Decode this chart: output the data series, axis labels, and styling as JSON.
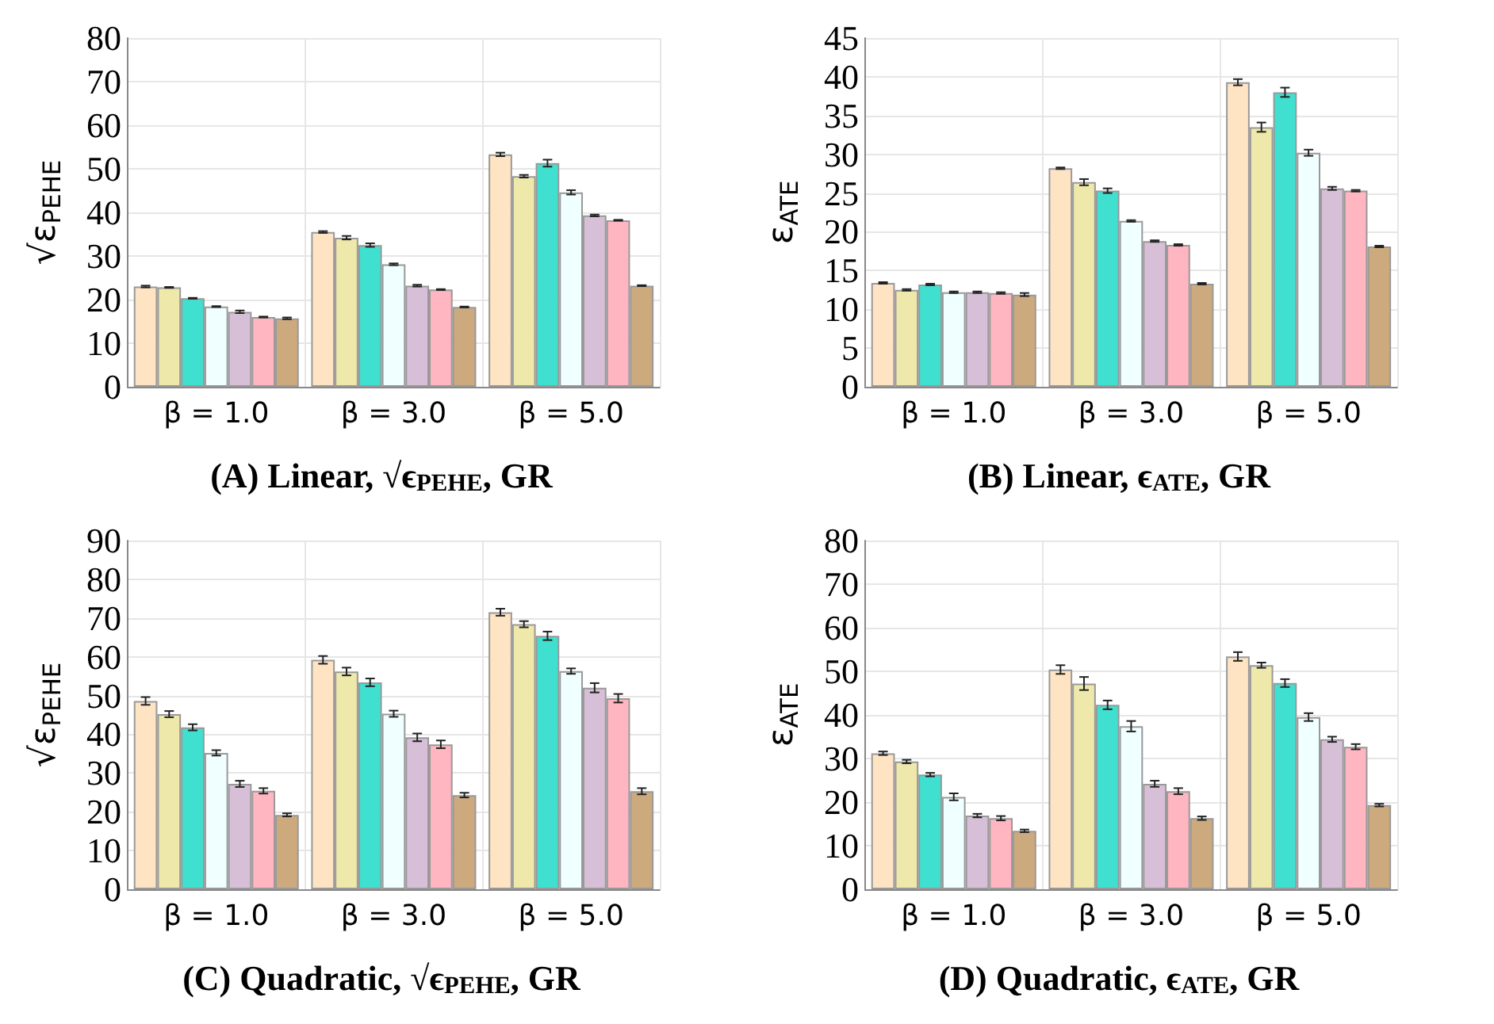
{
  "chart_data": [
    {
      "type": "bar",
      "title": "(A) Linear, √ϵ$_{PEHE}$, GR",
      "ylabel": "√ε$_{PEHE}$",
      "categories": [
        "β = 1.0",
        "β = 3.0",
        "β = 5.0"
      ],
      "ylim": [
        0,
        80
      ],
      "yticks": [
        0,
        10,
        20,
        30,
        40,
        50,
        60,
        70,
        80
      ],
      "grid": true,
      "series": [
        {
          "color": "#ffe4c4",
          "values": [
            23,
            35.5,
            53.3
          ],
          "errors": [
            0.2,
            0.2,
            0.4
          ]
        },
        {
          "color": "#eee8aa",
          "values": [
            22.8,
            34.2,
            48.3
          ],
          "errors": [
            0.1,
            0.4,
            0.3
          ]
        },
        {
          "color": "#40e0d0",
          "values": [
            20.3,
            32.5,
            51.3
          ],
          "errors": [
            0.1,
            0.4,
            0.8
          ]
        },
        {
          "color": "#f0ffff",
          "values": [
            18.4,
            28.1,
            44.6
          ],
          "errors": [
            0.1,
            0.2,
            0.5
          ]
        },
        {
          "color": "#d8bfd8",
          "values": [
            17.2,
            23.2,
            39.3
          ],
          "errors": [
            0.3,
            0.2,
            0.2
          ]
        },
        {
          "color": "#ffb6c1",
          "values": [
            16.0,
            22.3,
            38.2
          ],
          "errors": [
            0.1,
            0.1,
            0.1
          ]
        },
        {
          "color": "#cdaa7d",
          "values": [
            15.7,
            18.3,
            23.2
          ],
          "errors": [
            0.2,
            0.1,
            0.1
          ]
        }
      ]
    },
    {
      "type": "bar",
      "title": "(B) Linear, ϵ$_{ATE}$, GR",
      "ylabel": "ε$_{ATE}$",
      "categories": [
        "β = 1.0",
        "β = 3.0",
        "β = 5.0"
      ],
      "ylim": [
        0,
        45
      ],
      "yticks": [
        0,
        5,
        10,
        15,
        20,
        25,
        30,
        35,
        40,
        45
      ],
      "grid": true,
      "series": [
        {
          "color": "#ffe4c4",
          "values": [
            13.4,
            28.2,
            39.3
          ],
          "errors": [
            0.1,
            0.1,
            0.4
          ]
        },
        {
          "color": "#eee8aa",
          "values": [
            12.5,
            26.4,
            33.5
          ],
          "errors": [
            0.1,
            0.4,
            0.6
          ]
        },
        {
          "color": "#40e0d0",
          "values": [
            13.2,
            25.3,
            38.0
          ],
          "errors": [
            0.1,
            0.3,
            0.6
          ]
        },
        {
          "color": "#f0ffff",
          "values": [
            12.2,
            21.4,
            30.2
          ],
          "errors": [
            0.1,
            0.1,
            0.4
          ]
        },
        {
          "color": "#d8bfd8",
          "values": [
            12.2,
            18.8,
            25.6
          ],
          "errors": [
            0.1,
            0.1,
            0.2
          ]
        },
        {
          "color": "#ffb6c1",
          "values": [
            12.1,
            18.3,
            25.3
          ],
          "errors": [
            0.1,
            0.1,
            0.1
          ]
        },
        {
          "color": "#cdaa7d",
          "values": [
            11.9,
            13.3,
            18.1
          ],
          "errors": [
            0.2,
            0.1,
            0.1
          ]
        }
      ]
    },
    {
      "type": "bar",
      "title": "(C) Quadratic, √ϵ$_{PEHE}$, GR",
      "ylabel": "√ε$_{PEHE}$",
      "categories": [
        "β = 1.0",
        "β = 3.0",
        "β = 5.0"
      ],
      "ylim": [
        0,
        90
      ],
      "yticks": [
        0,
        10,
        20,
        30,
        40,
        50,
        60,
        70,
        80,
        90
      ],
      "grid": true,
      "series": [
        {
          "color": "#ffe4c4",
          "values": [
            48.6,
            59.2,
            71.5
          ],
          "errors": [
            1,
            1,
            0.9
          ]
        },
        {
          "color": "#eee8aa",
          "values": [
            45.2,
            56.2,
            68.4
          ],
          "errors": [
            0.8,
            1,
            0.8
          ]
        },
        {
          "color": "#40e0d0",
          "values": [
            41.8,
            53.4,
            65.4
          ],
          "errors": [
            0.8,
            1,
            1.1
          ]
        },
        {
          "color": "#f0ffff",
          "values": [
            35.2,
            45.3,
            56.3
          ],
          "errors": [
            0.7,
            0.8,
            0.7
          ]
        },
        {
          "color": "#d8bfd8",
          "values": [
            27.2,
            39.2,
            52.0
          ],
          "errors": [
            0.8,
            1,
            1.2
          ]
        },
        {
          "color": "#ffb6c1",
          "values": [
            25.4,
            37.4,
            49.3
          ],
          "errors": [
            0.7,
            1,
            1.1
          ]
        },
        {
          "color": "#cdaa7d",
          "values": [
            19.2,
            24.3,
            25.3
          ],
          "errors": [
            0.4,
            0.6,
            0.8
          ]
        }
      ]
    },
    {
      "type": "bar",
      "title": "(D) Quadratic, ϵ$_{ATE}$, GR",
      "ylabel": "ε$_{ATE}$",
      "categories": [
        "β = 1.0",
        "β = 3.0",
        "β = 5.0"
      ],
      "ylim": [
        0,
        80
      ],
      "yticks": [
        0,
        10,
        20,
        30,
        40,
        50,
        60,
        70,
        80
      ],
      "grid": true,
      "series": [
        {
          "color": "#ffe4c4",
          "values": [
            31.2,
            50.4,
            53.4
          ],
          "errors": [
            0.4,
            1,
            1
          ]
        },
        {
          "color": "#eee8aa",
          "values": [
            29.3,
            47.2,
            51.4
          ],
          "errors": [
            0.4,
            1.5,
            0.6
          ]
        },
        {
          "color": "#40e0d0",
          "values": [
            26.3,
            42.3,
            47.3
          ],
          "errors": [
            0.4,
            1,
            0.9
          ]
        },
        {
          "color": "#f0ffff",
          "values": [
            21.2,
            37.4,
            39.5
          ],
          "errors": [
            0.8,
            1.2,
            0.9
          ]
        },
        {
          "color": "#d8bfd8",
          "values": [
            16.9,
            24.2,
            34.4
          ],
          "errors": [
            0.4,
            0.7,
            0.6
          ]
        },
        {
          "color": "#ffb6c1",
          "values": [
            16.3,
            22.5,
            32.7
          ],
          "errors": [
            0.5,
            0.7,
            0.6
          ]
        },
        {
          "color": "#cdaa7d",
          "values": [
            13.4,
            16.3,
            19.3
          ],
          "errors": [
            0.3,
            0.4,
            0.3
          ]
        }
      ]
    }
  ]
}
